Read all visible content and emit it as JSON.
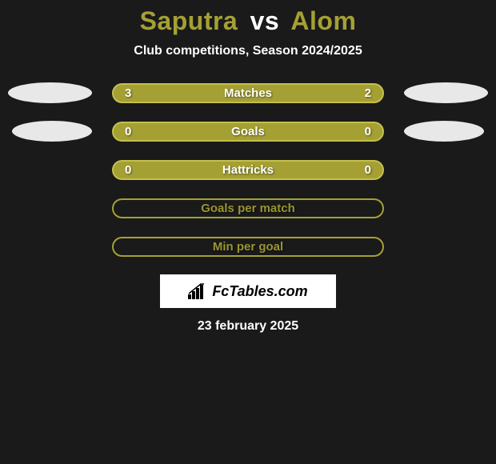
{
  "title": {
    "player1": "Saputra",
    "vs": "vs",
    "player2": "Alom",
    "player1_color": "#a5a034",
    "vs_color": "#ffffff",
    "player2_color": "#a5a034"
  },
  "subtitle": "Club competitions, Season 2024/2025",
  "bar_style": {
    "fill_color": "#a5a034",
    "border_color": "#c5c04a",
    "outline_text_color": "#9a9530",
    "filled_text_color": "#ffffff"
  },
  "avatars": {
    "left_bg": "#e8e8e8",
    "right_bg": "#e8e8e8"
  },
  "rows": [
    {
      "type": "filled",
      "label": "Matches",
      "left_value": "3",
      "right_value": "2",
      "show_left_avatar": true,
      "show_right_avatar": true,
      "avatar_size": "large"
    },
    {
      "type": "filled",
      "label": "Goals",
      "left_value": "0",
      "right_value": "0",
      "show_left_avatar": true,
      "show_right_avatar": true,
      "avatar_size": "small"
    },
    {
      "type": "filled",
      "label": "Hattricks",
      "left_value": "0",
      "right_value": "0",
      "show_left_avatar": false,
      "show_right_avatar": false
    },
    {
      "type": "outline",
      "label": "Goals per match",
      "left_value": "",
      "right_value": "",
      "show_left_avatar": false,
      "show_right_avatar": false
    },
    {
      "type": "outline",
      "label": "Min per goal",
      "left_value": "",
      "right_value": "",
      "show_left_avatar": false,
      "show_right_avatar": false
    }
  ],
  "brand": {
    "text": "FcTables.com",
    "icon_name": "bar-chart-icon"
  },
  "date": "23 february 2025",
  "background_color": "#1a1a1a"
}
